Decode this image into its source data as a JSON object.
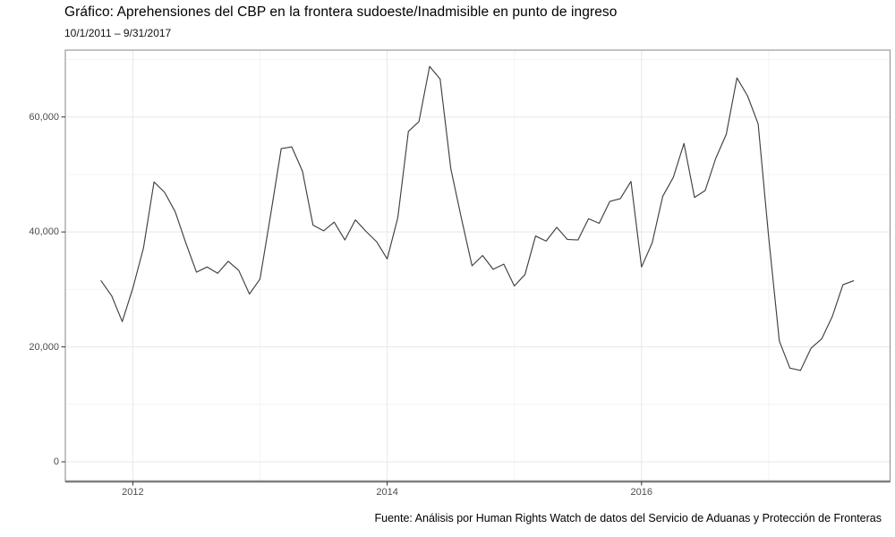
{
  "header": {
    "title": "Gráfico: Aprehensiones del CBP en la frontera sudoeste/Inadmisible en punto de ingreso",
    "subtitle": "10/1/2011 – 9/31/2017"
  },
  "footer": {
    "caption": "Fuente: Análisis por Human Rights Watch de datos del Servicio de Aduanas y Protección de Fronteras"
  },
  "chart_data": {
    "type": "line",
    "title": "Gráfico: Aprehensiones del CBP en la frontera sudoeste/Inadmisible en punto de ingreso",
    "subtitle": "10/1/2011 – 9/31/2017",
    "caption": "Fuente: Análisis por Human Rights Watch de datos del Servicio de Aduanas y Protección de Fronteras",
    "xlabel": "",
    "ylabel": "",
    "grid": "on",
    "legend": "none",
    "ylim": [
      0,
      70000
    ],
    "x": [
      "2011-10",
      "2011-11",
      "2011-12",
      "2012-01",
      "2012-02",
      "2012-03",
      "2012-04",
      "2012-05",
      "2012-06",
      "2012-07",
      "2012-08",
      "2012-09",
      "2012-10",
      "2012-11",
      "2012-12",
      "2013-01",
      "2013-02",
      "2013-03",
      "2013-04",
      "2013-05",
      "2013-06",
      "2013-07",
      "2013-08",
      "2013-09",
      "2013-10",
      "2013-11",
      "2013-12",
      "2014-01",
      "2014-02",
      "2014-03",
      "2014-04",
      "2014-05",
      "2014-06",
      "2014-07",
      "2014-08",
      "2014-09",
      "2014-10",
      "2014-11",
      "2014-12",
      "2015-01",
      "2015-02",
      "2015-03",
      "2015-04",
      "2015-05",
      "2015-06",
      "2015-07",
      "2015-08",
      "2015-09",
      "2015-10",
      "2015-11",
      "2015-12",
      "2016-01",
      "2016-02",
      "2016-03",
      "2016-04",
      "2016-05",
      "2016-06",
      "2016-07",
      "2016-08",
      "2016-09",
      "2016-10",
      "2016-11",
      "2016-12",
      "2017-01",
      "2017-02",
      "2017-03",
      "2017-04",
      "2017-05",
      "2017-06",
      "2017-07",
      "2017-08",
      "2017-09"
    ],
    "values": [
      31500,
      28900,
      24400,
      30200,
      37200,
      48700,
      46900,
      43500,
      38100,
      33000,
      33900,
      32800,
      34900,
      33300,
      29200,
      31800,
      43000,
      54500,
      54800,
      50600,
      41200,
      40200,
      41700,
      38600,
      42100,
      40100,
      38300,
      35300,
      42500,
      57500,
      59200,
      68800,
      66600,
      51000,
      42400,
      34100,
      35900,
      33500,
      34400,
      30600,
      32600,
      39300,
      38400,
      40800,
      38700,
      38600,
      42300,
      41500,
      45300,
      45800,
      48800,
      33900,
      38100,
      46200,
      49500,
      55400,
      46000,
      47200,
      52800,
      57000,
      66800,
      63700,
      58800,
      39000,
      21000,
      16300,
      15900,
      19800,
      21400,
      25300,
      30800,
      31500
    ],
    "x_axis": {
      "tick_labels": [
        "2012",
        "2014",
        "2016"
      ],
      "tick_years": [
        2012,
        2014,
        2016
      ],
      "minor_years": [
        2013,
        2015,
        2017
      ]
    },
    "y_axis": {
      "tick_labels": [
        "0",
        "20,000",
        "40,000",
        "60,000"
      ],
      "tick_values": [
        0,
        20000,
        40000,
        60000
      ],
      "minor_values": [
        10000,
        30000,
        50000,
        70000
      ]
    },
    "colors": {
      "line": "#404040",
      "grid_major": "#e8e8e8",
      "grid_minor": "#f4f4f4",
      "panel_border": "#9a9a9a",
      "axis_line": "#7f7f7f",
      "tick_mark": "#333333",
      "tick_text": "#4d4d4d",
      "background": "#ffffff"
    }
  }
}
